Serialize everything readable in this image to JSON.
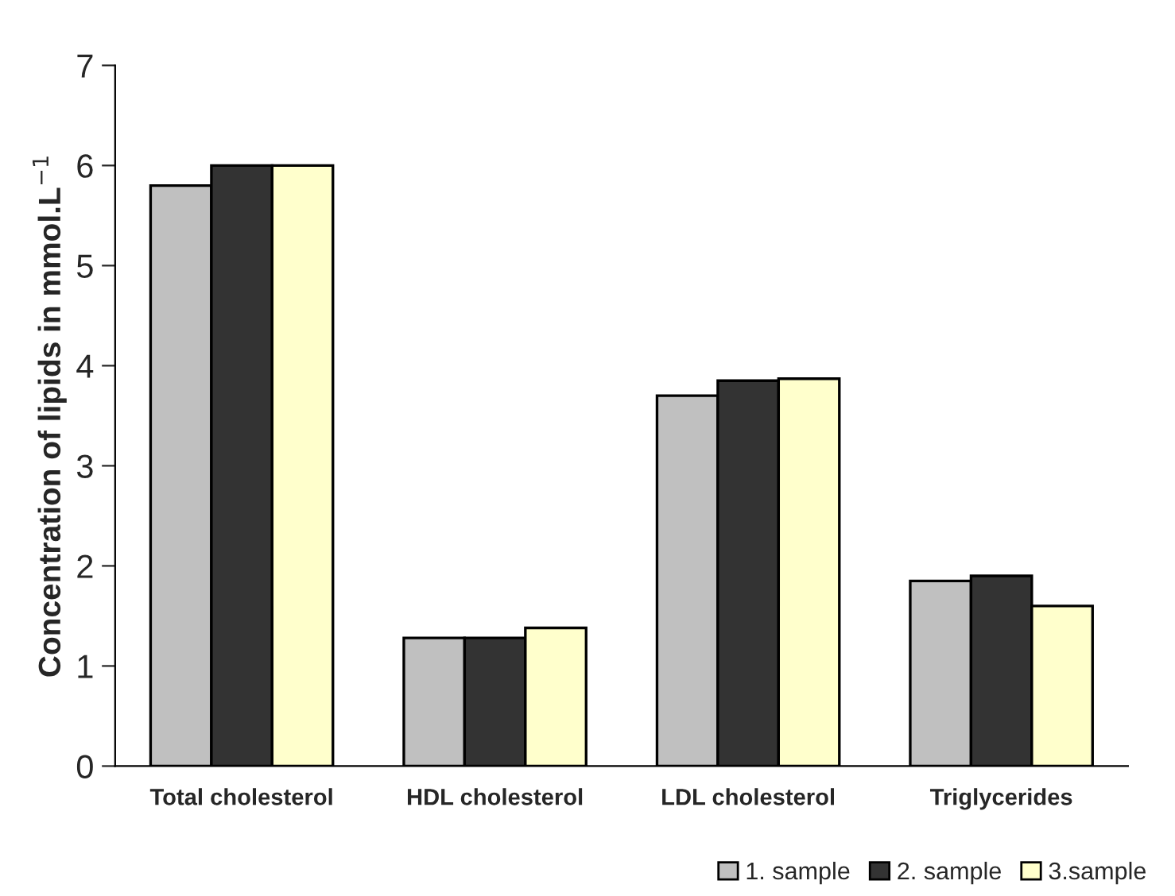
{
  "chart_data": {
    "type": "bar",
    "ylabel": "Concentration of lipids in mmol.L$^{−1}$",
    "categories": [
      "Total cholesterol",
      "HDL cholesterol",
      "LDL cholesterol",
      "Triglycerides"
    ],
    "series": [
      {
        "name": "1. sample",
        "color": "#c0c0c0",
        "values": [
          5.8,
          1.28,
          3.7,
          1.85
        ]
      },
      {
        "name": "2. sample",
        "color": "#333333",
        "values": [
          6.0,
          1.28,
          3.85,
          1.9
        ]
      },
      {
        "name": "3.sample",
        "color": "#ffffcc",
        "values": [
          6.0,
          1.38,
          3.87,
          1.6
        ]
      }
    ],
    "ylim": [
      0,
      7
    ],
    "yticks": [
      0,
      1,
      2,
      3,
      4,
      5,
      6,
      7
    ],
    "grid": false,
    "legend": "bottom right"
  }
}
